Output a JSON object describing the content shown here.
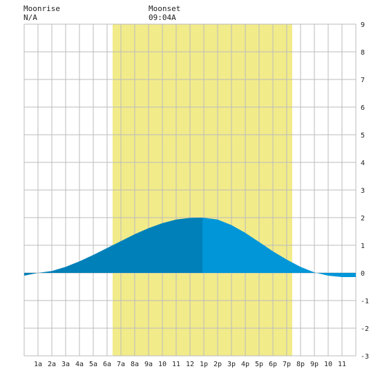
{
  "moonrise": {
    "label": "Moonrise",
    "value": "N/A"
  },
  "moonset": {
    "label": "Moonset",
    "value": "09:04A"
  },
  "colors": {
    "daylight": "#f2eb8a",
    "grid": "#bbbbbb",
    "tide_before_peak": "#0080b8",
    "tide_after_peak": "#0096d8",
    "background": "#ffffff"
  },
  "chart_data": {
    "type": "area",
    "x_tick_labels": [
      "1a",
      "2a",
      "3a",
      "4a",
      "5a",
      "6a",
      "7a",
      "8a",
      "9a",
      "10",
      "11",
      "12",
      "1p",
      "2p",
      "3p",
      "4p",
      "5p",
      "6p",
      "7p",
      "8p",
      "9p",
      "10",
      "11"
    ],
    "y_tick_labels": [
      "9",
      "8",
      "7",
      "6",
      "5",
      "4",
      "3",
      "2",
      "1",
      "0",
      "-1",
      "-2",
      "-3"
    ],
    "xlim_hours": [
      0,
      24
    ],
    "ylim": [
      -3,
      9
    ],
    "grid": true,
    "daylight_hours": [
      6.4,
      19.4
    ],
    "peak_hour": 12.9,
    "series": [
      {
        "x_hours": [
          0,
          1,
          2,
          3,
          4,
          5,
          6,
          7,
          8,
          9,
          10,
          11,
          12,
          12.9,
          14,
          15,
          16,
          17,
          18,
          19,
          20,
          21,
          22,
          23,
          24
        ],
        "y": [
          -0.1,
          0.0,
          0.07,
          0.22,
          0.42,
          0.65,
          0.9,
          1.15,
          1.4,
          1.62,
          1.8,
          1.93,
          1.99,
          2.0,
          1.93,
          1.73,
          1.45,
          1.12,
          0.78,
          0.48,
          0.22,
          0.02,
          -0.1,
          -0.15,
          -0.15
        ]
      }
    ]
  }
}
